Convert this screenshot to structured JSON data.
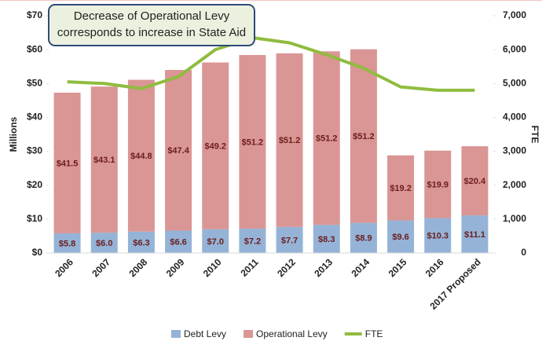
{
  "chart_data": {
    "type": "bar",
    "annotation": [
      "Decrease of Operational Levy",
      "corresponds to increase in State Aid"
    ],
    "y_label": "Millions",
    "y2_label": "FTE",
    "categories": [
      "2006",
      "2007",
      "2008",
      "2009",
      "2010",
      "2011",
      "2012",
      "2013",
      "2014",
      "2015",
      "2016",
      "2017 Proposed"
    ],
    "series": [
      {
        "name": "Debt Levy",
        "type": "bar",
        "color": "#95b3d7",
        "values": [
          5.8,
          6.0,
          6.3,
          6.6,
          7.0,
          7.2,
          7.7,
          8.3,
          8.9,
          9.6,
          10.3,
          11.1
        ],
        "value_labels": [
          "$5.8",
          "$6.0",
          "$6.3",
          "$6.6",
          "$7.0",
          "$7.2",
          "$7.7",
          "$8.3",
          "$8.9",
          "$9.6",
          "$10.3",
          "$11.1"
        ]
      },
      {
        "name": "Operational Levy",
        "type": "bar",
        "color": "#da9694",
        "values": [
          41.5,
          43.1,
          44.8,
          47.4,
          49.2,
          51.2,
          51.2,
          51.2,
          51.2,
          19.2,
          19.9,
          20.4
        ],
        "value_labels": [
          "$41.5",
          "$43.1",
          "$44.8",
          "$47.4",
          "$49.2",
          "$51.2",
          "$51.2",
          "$51.2",
          "$51.2",
          "$19.2",
          "$19.9",
          "$20.4"
        ]
      },
      {
        "name": "FTE",
        "type": "line",
        "axis": "y2",
        "color": "#8fbc3f",
        "values": [
          5050,
          5000,
          4850,
          5200,
          6000,
          6350,
          6200,
          5850,
          5450,
          4900,
          4800,
          4800
        ]
      }
    ],
    "stacked": true,
    "ylim": [
      0,
      70
    ],
    "yticks": [
      {
        "value": 0,
        "label": "$0"
      },
      {
        "value": 10,
        "label": "$10"
      },
      {
        "value": 20,
        "label": "$20"
      },
      {
        "value": 30,
        "label": "$30"
      },
      {
        "value": 40,
        "label": "$40"
      },
      {
        "value": 50,
        "label": "$50"
      },
      {
        "value": 60,
        "label": "$60"
      },
      {
        "value": 70,
        "label": "$70"
      }
    ],
    "y2lim": [
      0,
      7000
    ],
    "y2ticks": [
      0,
      {
        "value": 1000,
        "label": "1,000"
      },
      {
        "value": 2000,
        "label": "2,000"
      },
      {
        "value": 3000,
        "label": "3,000"
      },
      {
        "value": 4000,
        "label": "4,000"
      },
      {
        "value": 5000,
        "label": "5,000"
      },
      {
        "value": 6000,
        "label": "6,000"
      },
      {
        "value": 7000,
        "label": "7,000"
      }
    ],
    "legend": "bottom"
  }
}
